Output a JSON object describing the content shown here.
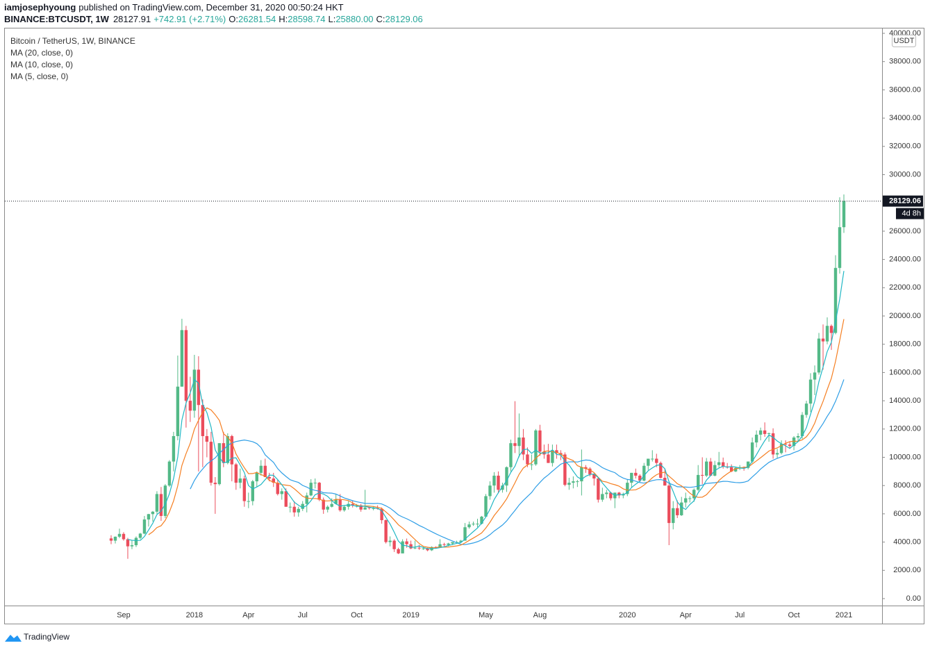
{
  "header": {
    "author": "iamjosephyoung",
    "published": "published on TradingView.com, December 31, 2020 00:50:24 HKT",
    "symbol": "BINANCE:BTCUSDT, 1W",
    "last": "28127.91",
    "change": "+742.91 (+2.71%)",
    "o_label": "O:",
    "o": "26281.54",
    "h_label": "H:",
    "h": "28598.74",
    "l_label": "L:",
    "l": "25880.00",
    "c_label": "C:",
    "c": "28129.06"
  },
  "brand": "TradingView",
  "chart_data": {
    "type": "candlestick",
    "title": "Bitcoin / TetherUS, 1W, BINANCE",
    "currency": "USDT",
    "countdown": "4d 8h",
    "up_color": "#53b987",
    "down_color": "#eb4d5c",
    "indicators": [
      {
        "name": "MA (20, close, 0)",
        "period": 20,
        "color": "#2e9ee6"
      },
      {
        "name": "MA (10, close, 0)",
        "period": 10,
        "color": "#f57f22"
      },
      {
        "name": "MA (5, close, 0)",
        "period": 5,
        "color": "#1fb7c4"
      }
    ],
    "ylim": [
      0,
      40000
    ],
    "yticks": [
      {
        "value": 0,
        "label": "0.00"
      },
      {
        "value": 2000,
        "label": "2000.00"
      },
      {
        "value": 4000,
        "label": "4000.00"
      },
      {
        "value": 6000,
        "label": "6000.00"
      },
      {
        "value": 8000,
        "label": "8000.00"
      },
      {
        "value": 10000,
        "label": "10000.00"
      },
      {
        "value": 12000,
        "label": "12000.00"
      },
      {
        "value": 14000,
        "label": "14000.00"
      },
      {
        "value": 16000,
        "label": "16000.00"
      },
      {
        "value": 18000,
        "label": "18000.00"
      },
      {
        "value": 20000,
        "label": "20000.00"
      },
      {
        "value": 22000,
        "label": "22000.00"
      },
      {
        "value": 24000,
        "label": "24000.00"
      },
      {
        "value": 26000,
        "label": "26000.00"
      },
      {
        "value": 28000,
        "label": "28000.00"
      },
      {
        "value": 30000,
        "label": "30000.00"
      },
      {
        "value": 32000,
        "label": "32000.00"
      },
      {
        "value": 34000,
        "label": "34000.00"
      },
      {
        "value": 36000,
        "label": "36000.00"
      },
      {
        "value": 38000,
        "label": "38000.00"
      },
      {
        "value": 40000,
        "label": "40000.00"
      }
    ],
    "categories": [
      null,
      null,
      null,
      "Sep",
      null,
      null,
      null,
      null,
      null,
      null,
      null,
      null,
      null,
      null,
      null,
      null,
      null,
      null,
      null,
      null,
      "2018",
      null,
      null,
      null,
      null,
      null,
      null,
      null,
      null,
      null,
      null,
      null,
      null,
      "Apr",
      null,
      null,
      null,
      null,
      null,
      null,
      null,
      null,
      null,
      null,
      null,
      null,
      "Jul",
      null,
      null,
      null,
      null,
      null,
      null,
      null,
      null,
      null,
      null,
      null,
      null,
      "Oct",
      null,
      null,
      null,
      null,
      null,
      null,
      null,
      null,
      null,
      null,
      null,
      null,
      "2019",
      null,
      null,
      null,
      null,
      null,
      null,
      null,
      null,
      null,
      null,
      null,
      null,
      null,
      null,
      null,
      null,
      null,
      "May",
      null,
      null,
      null,
      null,
      null,
      null,
      null,
      null,
      null,
      null,
      null,
      null,
      "Aug",
      null,
      null,
      null,
      null,
      null,
      null,
      null,
      null,
      null,
      null,
      null,
      null,
      null,
      null,
      null,
      null,
      null,
      null,
      null,
      null,
      "2020",
      null,
      null,
      null,
      null,
      null,
      null,
      null,
      null,
      null,
      null,
      null,
      null,
      null,
      "Apr",
      null,
      null,
      null,
      null,
      null,
      null,
      null,
      null,
      null,
      null,
      null,
      null,
      "Jul",
      null,
      null,
      null,
      null,
      null,
      null,
      null,
      null,
      null,
      null,
      null,
      null,
      "Oct",
      null,
      null,
      null,
      null,
      null,
      null,
      null,
      null,
      null,
      null,
      null,
      "2021"
    ],
    "ohlc": [
      [
        4261,
        4485,
        3850,
        4100
      ],
      [
        4100,
        4400,
        3900,
        4380
      ],
      [
        4380,
        4950,
        4280,
        4580
      ],
      [
        4580,
        4700,
        4100,
        4200
      ],
      [
        4200,
        4300,
        2817,
        3700
      ],
      [
        3700,
        4100,
        3500,
        3780
      ],
      [
        3780,
        4400,
        3650,
        4300
      ],
      [
        4300,
        4650,
        4200,
        4600
      ],
      [
        4600,
        5850,
        4550,
        5600
      ],
      [
        5600,
        6000,
        5100,
        5980
      ],
      [
        5980,
        6200,
        5450,
        6150
      ],
      [
        6150,
        7600,
        6000,
        7400
      ],
      [
        7400,
        7900,
        5500,
        5850
      ],
      [
        5850,
        8100,
        5700,
        8000
      ],
      [
        8000,
        9800,
        7900,
        9700
      ],
      [
        9700,
        11800,
        9000,
        11500
      ],
      [
        11500,
        17200,
        11200,
        15000
      ],
      [
        15000,
        19800,
        15000,
        19000
      ],
      [
        19000,
        19300,
        12100,
        14000
      ],
      [
        14000,
        15700,
        12500,
        13300
      ],
      [
        13300,
        17250,
        12800,
        16200
      ],
      [
        16200,
        17150,
        9000,
        13700
      ],
      [
        13700,
        14100,
        9300,
        11500
      ],
      [
        11500,
        12000,
        10000,
        11100
      ],
      [
        11100,
        11800,
        8000,
        8200
      ],
      [
        8200,
        8600,
        6000,
        8100
      ],
      [
        8100,
        11000,
        8000,
        11000
      ],
      [
        11000,
        11800,
        9300,
        9600
      ],
      [
        9600,
        11700,
        9500,
        11500
      ],
      [
        11500,
        11600,
        8300,
        9500
      ],
      [
        9500,
        9600,
        7700,
        8200
      ],
      [
        8200,
        9200,
        7800,
        8500
      ],
      [
        8500,
        8700,
        6500,
        6900
      ],
      [
        6900,
        7500,
        6400,
        6900
      ],
      [
        6900,
        8400,
        6600,
        8300
      ],
      [
        8300,
        9000,
        7900,
        8900
      ],
      [
        8900,
        9800,
        8700,
        9400
      ],
      [
        9400,
        9900,
        8800,
        8600
      ],
      [
        8600,
        8900,
        8300,
        8500
      ],
      [
        8500,
        8900,
        7900,
        8200
      ],
      [
        8200,
        8400,
        7300,
        7400
      ],
      [
        7400,
        7800,
        7000,
        7600
      ],
      [
        7600,
        7800,
        6500,
        6500
      ],
      [
        6500,
        6800,
        6100,
        6500
      ],
      [
        6500,
        6900,
        5800,
        6100
      ],
      [
        6100,
        6500,
        5800,
        6350
      ],
      [
        6350,
        6900,
        6200,
        6700
      ],
      [
        6700,
        7500,
        6100,
        7300
      ],
      [
        7300,
        8450,
        7250,
        8200
      ],
      [
        8200,
        8500,
        7800,
        8200
      ],
      [
        8200,
        8250,
        6900,
        7000
      ],
      [
        7000,
        7150,
        6000,
        6300
      ],
      [
        6300,
        6600,
        6100,
        6500
      ],
      [
        6500,
        7100,
        6450,
        6700
      ],
      [
        6700,
        7400,
        6700,
        7000
      ],
      [
        7000,
        7400,
        6150,
        6250
      ],
      [
        6250,
        6600,
        6150,
        6500
      ],
      [
        6500,
        6900,
        6300,
        6700
      ],
      [
        6700,
        6950,
        6450,
        6600
      ],
      [
        6600,
        6700,
        6450,
        6600
      ],
      [
        6600,
        6700,
        6150,
        6300
      ],
      [
        6300,
        7700,
        6300,
        6450
      ],
      [
        6450,
        6500,
        6300,
        6400
      ],
      [
        6400,
        6550,
        6250,
        6400
      ],
      [
        6400,
        6600,
        6300,
        6350
      ],
      [
        6350,
        6450,
        5300,
        5550
      ],
      [
        5550,
        5600,
        3900,
        4000
      ],
      [
        4000,
        4400,
        3700,
        4100
      ],
      [
        4100,
        4200,
        3300,
        3500
      ],
      [
        3500,
        3600,
        3150,
        3200
      ],
      [
        3200,
        4200,
        3200,
        4050
      ],
      [
        4050,
        4250,
        3600,
        3850
      ],
      [
        3850,
        4100,
        3500,
        3550
      ],
      [
        3550,
        4100,
        3500,
        3600
      ],
      [
        3600,
        3800,
        3450,
        3550
      ],
      [
        3550,
        3650,
        3450,
        3550
      ],
      [
        3550,
        3600,
        3350,
        3420
      ],
      [
        3420,
        3700,
        3370,
        3650
      ],
      [
        3650,
        3700,
        3550,
        3600
      ],
      [
        3600,
        4200,
        3600,
        3850
      ],
      [
        3850,
        3950,
        3700,
        3800
      ],
      [
        3800,
        3950,
        3700,
        3900
      ],
      [
        3900,
        4000,
        3800,
        4000
      ],
      [
        4000,
        4100,
        3950,
        4000
      ],
      [
        4000,
        4150,
        3950,
        4100
      ],
      [
        4100,
        5350,
        4100,
        5050
      ],
      [
        5050,
        5450,
        4950,
        5250
      ],
      [
        5250,
        5450,
        5150,
        5300
      ],
      [
        5300,
        5650,
        5050,
        5300
      ],
      [
        5300,
        5850,
        5250,
        5800
      ],
      [
        5800,
        7400,
        5750,
        7250
      ],
      [
        7250,
        8300,
        7000,
        8000
      ],
      [
        8000,
        8950,
        7500,
        8700
      ],
      [
        8700,
        9000,
        7450,
        7700
      ],
      [
        7700,
        8200,
        7500,
        8000
      ],
      [
        8000,
        9350,
        7550,
        9300
      ],
      [
        9300,
        11250,
        9000,
        11000
      ],
      [
        11000,
        13970,
        10300,
        10800
      ],
      [
        10800,
        13100,
        10000,
        11400
      ],
      [
        11400,
        12000,
        9800,
        10200
      ],
      [
        10200,
        10700,
        9300,
        9500
      ],
      [
        9500,
        10200,
        9100,
        9500
      ],
      [
        9500,
        12000,
        9400,
        11900
      ],
      [
        11900,
        12300,
        10100,
        10400
      ],
      [
        10400,
        10900,
        9900,
        10200
      ],
      [
        10200,
        10950,
        9600,
        9600
      ],
      [
        9600,
        10900,
        9350,
        10500
      ],
      [
        10500,
        10900,
        9900,
        10300
      ],
      [
        10300,
        10500,
        9800,
        10200
      ],
      [
        10200,
        10350,
        7950,
        8050
      ],
      [
        8050,
        8550,
        7700,
        8200
      ],
      [
        8200,
        8650,
        7800,
        8300
      ],
      [
        8300,
        8400,
        7900,
        8300
      ],
      [
        8300,
        10550,
        7300,
        9300
      ],
      [
        9300,
        9450,
        8900,
        9200
      ],
      [
        9200,
        9300,
        8650,
        8800
      ],
      [
        8800,
        8850,
        8000,
        8500
      ],
      [
        8500,
        8550,
        6800,
        7000
      ],
      [
        7000,
        7850,
        6850,
        7400
      ],
      [
        7400,
        7700,
        7100,
        7500
      ],
      [
        7500,
        7550,
        6950,
        7100
      ],
      [
        7100,
        7500,
        6400,
        7500
      ],
      [
        7500,
        7550,
        7100,
        7300
      ],
      [
        7300,
        7500,
        7100,
        7400
      ],
      [
        7400,
        8450,
        7250,
        8200
      ],
      [
        8200,
        8900,
        7850,
        8900
      ],
      [
        8900,
        9200,
        8500,
        8700
      ],
      [
        8700,
        8800,
        8250,
        8350
      ],
      [
        8350,
        9600,
        8300,
        9400
      ],
      [
        9400,
        9900,
        9100,
        9900
      ],
      [
        9900,
        10500,
        9700,
        9900
      ],
      [
        9900,
        10250,
        9300,
        9600
      ],
      [
        9600,
        9700,
        8500,
        8550
      ],
      [
        8550,
        9200,
        8000,
        8000
      ],
      [
        8000,
        8200,
        3782,
        5350
      ],
      [
        5350,
        6900,
        4900,
        6400
      ],
      [
        6400,
        6950,
        5700,
        5900
      ],
      [
        5900,
        7200,
        5850,
        6800
      ],
      [
        6800,
        7500,
        6450,
        7100
      ],
      [
        7100,
        7250,
        6800,
        7100
      ],
      [
        7100,
        7800,
        6850,
        7700
      ],
      [
        7700,
        9450,
        7600,
        8750
      ],
      [
        8750,
        10000,
        8100,
        8700
      ],
      [
        8700,
        9950,
        8600,
        9700
      ],
      [
        9700,
        9950,
        8800,
        8700
      ],
      [
        8700,
        9750,
        8650,
        9450
      ],
      [
        9450,
        10380,
        9250,
        9650
      ],
      [
        9650,
        9980,
        9200,
        9350
      ],
      [
        9350,
        9600,
        9200,
        9300
      ],
      [
        9300,
        9500,
        8950,
        9000
      ],
      [
        9000,
        9300,
        8950,
        9250
      ],
      [
        9250,
        9450,
        9100,
        9300
      ],
      [
        9300,
        9350,
        9050,
        9250
      ],
      [
        9250,
        9700,
        9150,
        9700
      ],
      [
        9700,
        11400,
        9600,
        11050
      ],
      [
        11050,
        11900,
        10700,
        11600
      ],
      [
        11600,
        12100,
        11200,
        11900
      ],
      [
        11900,
        12470,
        11450,
        11650
      ],
      [
        11650,
        11750,
        11100,
        11700
      ],
      [
        11700,
        12050,
        9900,
        10200
      ],
      [
        10200,
        10600,
        9900,
        10300
      ],
      [
        10300,
        11200,
        10200,
        10950
      ],
      [
        10950,
        11200,
        10350,
        10900
      ],
      [
        10900,
        11100,
        10600,
        10800
      ],
      [
        10800,
        11500,
        10500,
        11400
      ],
      [
        11400,
        11700,
        11100,
        11500
      ],
      [
        11500,
        13200,
        11300,
        13000
      ],
      [
        13000,
        14000,
        12800,
        13800
      ],
      [
        13800,
        15950,
        13200,
        15500
      ],
      [
        15500,
        16500,
        14400,
        16000
      ],
      [
        16000,
        18800,
        15850,
        18400
      ],
      [
        18400,
        19400,
        16200,
        18200
      ],
      [
        18200,
        19900,
        18000,
        19300
      ],
      [
        19300,
        19400,
        17600,
        18800
      ],
      [
        18800,
        24300,
        18700,
        23400
      ],
      [
        23400,
        28400,
        23000,
        26281.54
      ],
      [
        26281.54,
        28598.74,
        25880,
        28129.06
      ]
    ]
  }
}
